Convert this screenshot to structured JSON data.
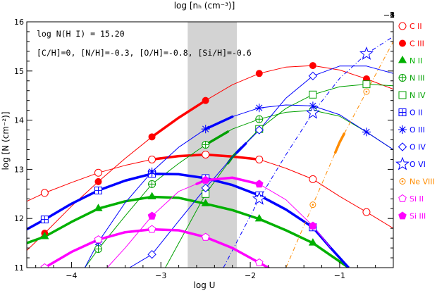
{
  "chart_data": {
    "type": "line",
    "xlabel": "log U",
    "ylabel": "log [N (cm⁻²)]",
    "top_xlabel": "log [nₕ (cm⁻³)]",
    "xlim": [
      -4.5,
      -0.4
    ],
    "ylim": [
      11,
      16
    ],
    "x_ticks": [
      -4,
      -3,
      -2,
      -1
    ],
    "y_ticks": [
      11,
      12,
      13,
      14,
      15,
      16
    ],
    "top_ticks": [
      -1,
      -2,
      -3,
      -4,
      -5
    ],
    "top_offset": -5.0,
    "shaded_band": {
      "x": [
        -2.7,
        -2.15
      ],
      "color": "#d3d3d3"
    },
    "annotations": [
      "log N(H I) = 15.20",
      "[C/H]=0, [N/H]=-0.3, [O/H]=-0.8, [Si/H]=-0.6"
    ],
    "series": [
      {
        "name": "C II",
        "color": "#ff0000",
        "width": 1,
        "marker": "circle-open",
        "marker_x": [
          -4.3,
          -3.7,
          -3.1,
          -2.5,
          -1.9,
          -1.3,
          -0.7
        ],
        "x": [
          -4.5,
          -4.3,
          -4.0,
          -3.7,
          -3.4,
          -3.1,
          -2.8,
          -2.5,
          -2.2,
          -1.9,
          -1.6,
          -1.3,
          -1.0,
          -0.7,
          -0.4
        ],
        "y": [
          12.35,
          12.52,
          12.73,
          12.93,
          13.08,
          13.2,
          13.27,
          13.3,
          13.26,
          13.2,
          13.02,
          12.8,
          12.45,
          12.13,
          11.8
        ],
        "thick": []
      },
      {
        "name": "C III",
        "color": "#ff0000",
        "width": 1,
        "marker": "circle-filled",
        "marker_x": [
          -4.3,
          -3.7,
          -3.1,
          -2.5,
          -1.9,
          -1.3,
          -0.7
        ],
        "x": [
          -4.5,
          -4.3,
          -4.0,
          -3.7,
          -3.4,
          -3.1,
          -2.8,
          -2.5,
          -2.2,
          -1.9,
          -1.6,
          -1.3,
          -1.0,
          -0.7,
          -0.4
        ],
        "y": [
          11.35,
          11.7,
          12.25,
          12.75,
          13.22,
          13.66,
          14.05,
          14.4,
          14.72,
          14.95,
          15.08,
          15.11,
          15.02,
          14.84,
          14.63
        ],
        "thick": [
          [
            -3.1,
            -2.5
          ]
        ]
      },
      {
        "name": "C II (thick)",
        "color": "#ff0000",
        "width": 3.5,
        "marker": "none",
        "marker_x": [],
        "x": [
          -3.1,
          -2.8,
          -2.5,
          -2.2,
          -1.9
        ],
        "y": [
          13.2,
          13.27,
          13.3,
          13.26,
          13.2
        ],
        "thick": []
      },
      {
        "name": "N II",
        "color": "#00b000",
        "width": 3.5,
        "marker": "triangle-filled",
        "marker_x": [
          -4.3,
          -3.7,
          -3.1,
          -2.5,
          -1.9,
          -1.3
        ],
        "x": [
          -4.5,
          -4.3,
          -4.0,
          -3.7,
          -3.4,
          -3.1,
          -2.8,
          -2.5,
          -2.2,
          -1.9,
          -1.6,
          -1.3,
          -1.1,
          -0.9
        ],
        "y": [
          11.5,
          11.63,
          11.93,
          12.2,
          12.35,
          12.44,
          12.42,
          12.3,
          12.17,
          11.99,
          11.76,
          11.5,
          11.25,
          11.0
        ],
        "thick": []
      },
      {
        "name": "N III",
        "color": "#00a000",
        "width": 1,
        "marker": "circle-plus",
        "marker_x": [
          -3.7,
          -3.1,
          -2.5,
          -1.9,
          -1.3
        ],
        "x": [
          -3.85,
          -3.7,
          -3.4,
          -3.1,
          -2.8,
          -2.5,
          -2.2,
          -1.9,
          -1.6,
          -1.3,
          -1.0,
          -0.7,
          -0.4
        ],
        "y": [
          11.0,
          11.38,
          12.05,
          12.7,
          13.12,
          13.5,
          13.82,
          14.02,
          14.16,
          14.2,
          14.08,
          13.76,
          13.4
        ],
        "thick": [
          [
            -2.5,
            -2.25
          ]
        ]
      },
      {
        "name": "N IV",
        "color": "#00a000",
        "width": 1,
        "marker": "square-open",
        "marker_x": [
          -2.5,
          -1.9,
          -1.3,
          -0.7
        ],
        "x": [
          -2.95,
          -2.8,
          -2.5,
          -2.2,
          -1.9,
          -1.6,
          -1.3,
          -1.0,
          -0.7,
          -0.4
        ],
        "y": [
          11.0,
          11.5,
          12.5,
          13.25,
          13.82,
          14.24,
          14.52,
          14.68,
          14.73,
          14.7
        ],
        "thick": [
          [
            -2.25,
            -2.1
          ]
        ]
      },
      {
        "name": "O II",
        "color": "#0000ff",
        "width": 3.5,
        "marker": "square-plus",
        "marker_x": [
          -4.3,
          -3.7,
          -3.1,
          -2.5,
          -1.9,
          -1.3
        ],
        "x": [
          -4.5,
          -4.3,
          -4.0,
          -3.7,
          -3.4,
          -3.1,
          -2.8,
          -2.5,
          -2.2,
          -1.9,
          -1.6,
          -1.3,
          -1.1,
          -0.9
        ],
        "y": [
          11.78,
          11.98,
          12.3,
          12.57,
          12.77,
          12.91,
          12.9,
          12.82,
          12.68,
          12.47,
          12.18,
          11.82,
          11.4,
          11.0
        ],
        "thick": []
      },
      {
        "name": "O III",
        "color": "#0000ff",
        "width": 1,
        "marker": "asterisk",
        "marker_x": [
          -3.7,
          -3.1,
          -2.5,
          -1.9,
          -1.3,
          -0.7
        ],
        "x": [
          -3.85,
          -3.7,
          -3.4,
          -3.1,
          -2.8,
          -2.5,
          -2.2,
          -1.9,
          -1.6,
          -1.3,
          -1.0,
          -0.7,
          -0.4
        ],
        "y": [
          11.0,
          11.52,
          12.32,
          12.95,
          13.45,
          13.82,
          14.07,
          14.25,
          14.31,
          14.29,
          14.11,
          13.76,
          13.4
        ],
        "thick": [
          [
            -2.5,
            -2.2
          ]
        ]
      },
      {
        "name": "O IV",
        "color": "#0000ff",
        "width": 1,
        "marker": "diamond-open",
        "marker_x": [
          -3.1,
          -2.5,
          -1.9,
          -1.3
        ],
        "x": [
          -3.35,
          -3.1,
          -2.8,
          -2.5,
          -2.2,
          -1.9,
          -1.6,
          -1.3,
          -1.0,
          -0.7,
          -0.4
        ],
        "y": [
          11.0,
          11.27,
          11.95,
          12.62,
          13.25,
          13.8,
          14.45,
          14.9,
          15.1,
          15.1,
          14.95
        ],
        "thick": [
          [
            -2.15,
            -2.05
          ]
        ]
      },
      {
        "name": "O VI",
        "color": "#0000ff",
        "width": 1,
        "dash": "6,3,1,3",
        "marker": "star-open",
        "marker_x": [
          -1.9,
          -1.3,
          -0.7
        ],
        "x": [
          -2.3,
          -2.1,
          -1.9,
          -1.6,
          -1.3,
          -1.0,
          -0.7,
          -0.4
        ],
        "y": [
          11.0,
          11.7,
          12.4,
          13.3,
          14.15,
          14.85,
          15.35,
          15.7
        ],
        "thick": []
      },
      {
        "name": "Ne VIII",
        "color": "#ff8c00",
        "width": 1,
        "dash": "6,3,1,3",
        "marker": "circle-dot",
        "marker_x": [
          -1.3,
          -0.7
        ],
        "x": [
          -1.6,
          -1.3,
          -1.0,
          -0.7,
          -0.4
        ],
        "y": [
          11.0,
          12.28,
          13.55,
          14.58,
          15.6
        ],
        "thick": [
          [
            -1.05,
            -0.95
          ]
        ]
      },
      {
        "name": "Si II",
        "color": "#ff00ff",
        "width": 3.5,
        "marker": "pentagon-open",
        "marker_x": [
          -4.3,
          -3.7,
          -3.1,
          -2.5,
          -1.9
        ],
        "x": [
          -4.5,
          -4.3,
          -4.0,
          -3.7,
          -3.4,
          -3.1,
          -2.8,
          -2.5,
          -2.2,
          -1.9,
          -1.7
        ],
        "y": [
          10.85,
          11.0,
          11.32,
          11.57,
          11.72,
          11.78,
          11.76,
          11.62,
          11.4,
          11.1,
          10.9
        ],
        "thick": []
      },
      {
        "name": "Si III",
        "color": "#ff00ff",
        "width": 1,
        "marker": "pentagon-filled",
        "marker_x": [
          -3.1,
          -2.5,
          -1.9,
          -1.3
        ],
        "x": [
          -3.6,
          -3.4,
          -3.1,
          -2.8,
          -2.5,
          -2.2,
          -1.9,
          -1.6,
          -1.3,
          -1.1
        ],
        "y": [
          11.0,
          11.4,
          12.05,
          12.55,
          12.78,
          12.83,
          12.7,
          12.38,
          11.85,
          11.4
        ],
        "thick": [
          [
            -2.6,
            -1.9
          ]
        ]
      }
    ],
    "legend": {
      "placement": "right",
      "items": [
        {
          "label": "C II",
          "color": "#ff0000",
          "marker": "circle-open"
        },
        {
          "label": "C III",
          "color": "#ff0000",
          "marker": "circle-filled"
        },
        {
          "label": "N II",
          "color": "#00b000",
          "marker": "triangle-filled"
        },
        {
          "label": "N III",
          "color": "#00a000",
          "marker": "circle-plus"
        },
        {
          "label": "N IV",
          "color": "#00a000",
          "marker": "square-open"
        },
        {
          "label": "O II",
          "color": "#0000ff",
          "marker": "square-plus"
        },
        {
          "label": "O III",
          "color": "#0000ff",
          "marker": "asterisk"
        },
        {
          "label": "O IV",
          "color": "#0000ff",
          "marker": "diamond-open"
        },
        {
          "label": "O VI",
          "color": "#0000ff",
          "marker": "star-open"
        },
        {
          "label": "Ne VIII",
          "color": "#ff8c00",
          "marker": "circle-dot"
        },
        {
          "label": "Si II",
          "color": "#ff00ff",
          "marker": "pentagon-open"
        },
        {
          "label": "Si III",
          "color": "#ff00ff",
          "marker": "pentagon-filled"
        }
      ]
    }
  }
}
